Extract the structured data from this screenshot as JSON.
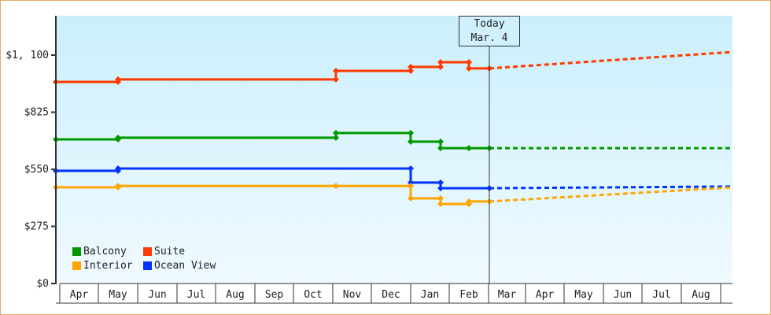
{
  "chart_data": {
    "type": "line",
    "title": "",
    "xlabel": "",
    "ylabel": "",
    "ylim": [
      0,
      1290
    ],
    "y_ticks": [
      "$0",
      "$275",
      "$550",
      "$825",
      "$1, 100"
    ],
    "y_tick_values": [
      0,
      275,
      550,
      825,
      1100
    ],
    "x_tick_labels": [
      "Apr",
      "May",
      "Jun",
      "Jul",
      "Aug",
      "Sep",
      "Oct",
      "Nov",
      "Dec",
      "Jan",
      "Feb",
      "Mar",
      "Apr",
      "May",
      "Jun",
      "Jul",
      "Aug"
    ],
    "grid": false,
    "legend_position": "lower-left inside",
    "today_marker": {
      "line1": "Today",
      "line2": "Mar. 4"
    },
    "series": [
      {
        "name": "Suite",
        "color": "#ff3a00",
        "history": [
          {
            "x": "Apr start",
            "y": 971
          },
          {
            "x": "May start",
            "y": 971
          },
          {
            "x": "May start",
            "y": 983
          },
          {
            "x": "Nov start",
            "y": 983
          },
          {
            "x": "Nov start",
            "y": 1024
          },
          {
            "x": "Jan start",
            "y": 1024
          },
          {
            "x": "Jan start",
            "y": 1043
          },
          {
            "x": "Jan mid",
            "y": 1043
          },
          {
            "x": "Jan mid",
            "y": 1066
          },
          {
            "x": "Feb mid",
            "y": 1066
          },
          {
            "x": "Feb mid",
            "y": 1036
          },
          {
            "x": "Mar 4",
            "y": 1036
          }
        ],
        "projection": [
          {
            "x": "Mar 4",
            "y": 1036
          },
          {
            "x": "Aug end",
            "y": 1115
          }
        ]
      },
      {
        "name": "Balcony",
        "color": "#009900",
        "history": [
          {
            "x": "Apr start",
            "y": 694
          },
          {
            "x": "May start",
            "y": 694
          },
          {
            "x": "May start",
            "y": 702
          },
          {
            "x": "Nov start",
            "y": 702
          },
          {
            "x": "Nov start",
            "y": 725
          },
          {
            "x": "Jan start",
            "y": 725
          },
          {
            "x": "Jan start",
            "y": 683
          },
          {
            "x": "Jan mid",
            "y": 683
          },
          {
            "x": "Jan mid",
            "y": 652
          },
          {
            "x": "Feb mid",
            "y": 652
          },
          {
            "x": "Mar 4",
            "y": 652
          }
        ],
        "projection": [
          {
            "x": "Mar 4",
            "y": 652
          },
          {
            "x": "Aug end",
            "y": 652
          }
        ]
      },
      {
        "name": "Ocean View",
        "color": "#0033ff",
        "history": [
          {
            "x": "Apr start",
            "y": 543
          },
          {
            "x": "May start",
            "y": 543
          },
          {
            "x": "May start",
            "y": 554
          },
          {
            "x": "Jan start",
            "y": 554
          },
          {
            "x": "Jan start",
            "y": 486
          },
          {
            "x": "Jan mid",
            "y": 486
          },
          {
            "x": "Jan mid",
            "y": 459
          },
          {
            "x": "Mar 4",
            "y": 459
          }
        ],
        "projection": [
          {
            "x": "Mar 4",
            "y": 459
          },
          {
            "x": "Aug end",
            "y": 467
          }
        ]
      },
      {
        "name": "Interior",
        "color": "#ffa500",
        "history": [
          {
            "x": "Apr start",
            "y": 463
          },
          {
            "x": "May start",
            "y": 463
          },
          {
            "x": "May start",
            "y": 470
          },
          {
            "x": "Nov start",
            "y": 470
          },
          {
            "x": "Jan start",
            "y": 470
          },
          {
            "x": "Jan start",
            "y": 410
          },
          {
            "x": "Jan mid",
            "y": 410
          },
          {
            "x": "Jan mid",
            "y": 383
          },
          {
            "x": "Feb mid",
            "y": 383
          },
          {
            "x": "Feb mid",
            "y": 395
          },
          {
            "x": "Mar 4",
            "y": 395
          }
        ],
        "projection": [
          {
            "x": "Mar 4",
            "y": 395
          },
          {
            "x": "Aug end",
            "y": 463
          }
        ]
      }
    ]
  },
  "legend": [
    {
      "label": "Balcony",
      "color": "#009900"
    },
    {
      "label": "Suite",
      "color": "#ff3a00"
    },
    {
      "label": "Interior",
      "color": "#ffa500"
    },
    {
      "label": "Ocean View",
      "color": "#0033ff"
    }
  ],
  "today": {
    "line1": "Today",
    "line2": "Mar. 4"
  },
  "axis": {
    "y_labels": [
      "$1, 100",
      "$825",
      "$550",
      "$275",
      "$0"
    ],
    "x_labels": [
      "Apr",
      "May",
      "Jun",
      "Jul",
      "Aug",
      "Sep",
      "Oct",
      "Nov",
      "Dec",
      "Jan",
      "Feb",
      "Mar",
      "Apr",
      "May",
      "Jun",
      "Jul",
      "Aug"
    ]
  }
}
